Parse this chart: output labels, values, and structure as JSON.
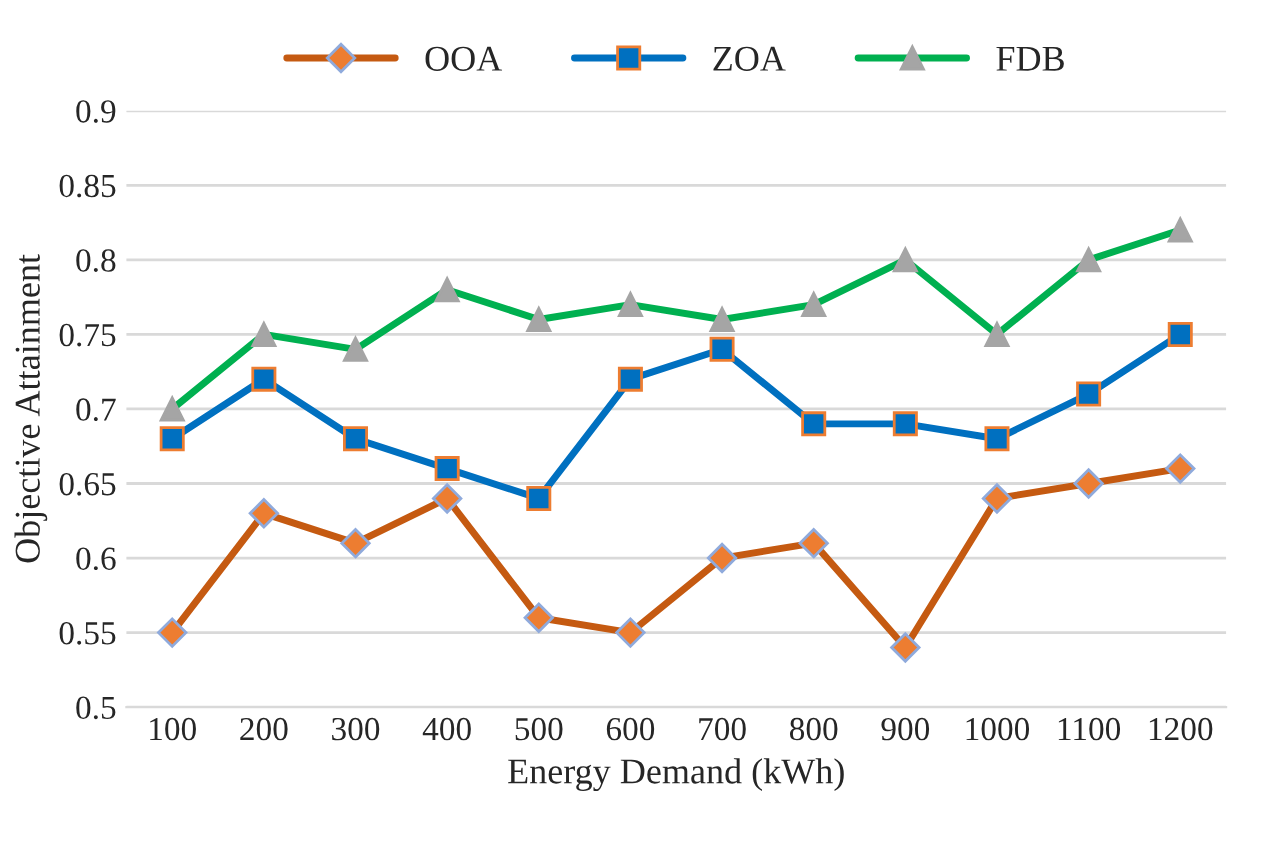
{
  "chart_data": {
    "type": "line",
    "xlabel": "Energy Demand (kWh)",
    "ylabel": "Objective Attainment",
    "categories": [
      "100",
      "200",
      "300",
      "400",
      "500",
      "600",
      "700",
      "800",
      "900",
      "1000",
      "1100",
      "1200"
    ],
    "series": [
      {
        "name": "OOA",
        "color": "#c55a11",
        "marker": "diamond",
        "values": [
          0.55,
          0.63,
          0.61,
          0.64,
          0.56,
          0.55,
          0.6,
          0.61,
          0.54,
          0.64,
          0.65,
          0.66
        ]
      },
      {
        "name": "ZOA",
        "color": "#0070c0",
        "marker": "square",
        "values": [
          0.68,
          0.72,
          0.68,
          0.66,
          0.64,
          0.72,
          0.74,
          0.69,
          0.69,
          0.68,
          0.71,
          0.75
        ]
      },
      {
        "name": "FDB",
        "color": "#00b050",
        "marker": "triangle",
        "values": [
          0.7,
          0.75,
          0.74,
          0.78,
          0.76,
          0.77,
          0.76,
          0.77,
          0.8,
          0.75,
          0.8,
          0.82
        ]
      }
    ],
    "ylim": [
      0.5,
      0.9
    ],
    "yticks": [
      0.5,
      0.55,
      0.6,
      0.65,
      0.7,
      0.75,
      0.8,
      0.85,
      0.9
    ],
    "grid": "y",
    "legend": "top",
    "line_style": "solid"
  }
}
